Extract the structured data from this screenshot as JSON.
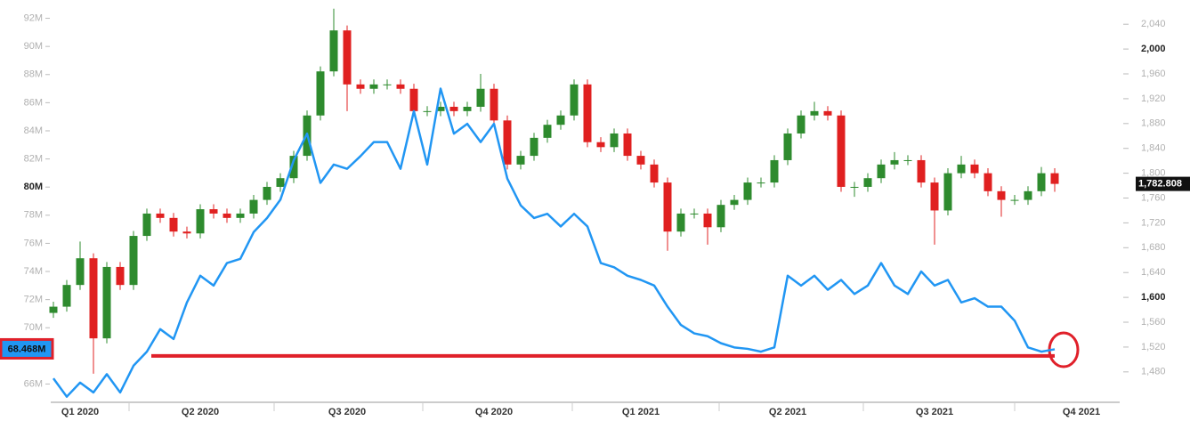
{
  "chart_data": {
    "type": "candlestick",
    "categories": [
      null,
      null,
      "Q1 2020",
      null,
      null,
      null,
      null,
      null,
      null,
      null,
      null,
      "Q2 2020",
      null,
      null,
      null,
      null,
      null,
      null,
      null,
      null,
      null,
      null,
      "Q3 2020",
      null,
      null,
      null,
      null,
      null,
      null,
      null,
      null,
      null,
      null,
      "Q4 2020",
      null,
      null,
      null,
      null,
      null,
      null,
      null,
      null,
      null,
      null,
      "Q1 2021",
      null,
      null,
      null,
      null,
      null,
      null,
      null,
      null,
      null,
      null,
      "Q2 2021",
      null,
      null,
      null,
      null,
      null,
      null,
      null,
      null,
      null,
      null,
      "Q3 2021",
      null,
      null,
      null,
      null,
      null,
      null,
      null,
      null,
      null,
      null,
      "Q4 2021"
    ],
    "ohlc": {
      "axis": "y2",
      "up_color": "#2e8b2e",
      "down_color": "#e02020",
      "open": [
        1575,
        1585,
        1620,
        1663,
        1534,
        1649,
        1620,
        1699,
        1735,
        1728,
        1706,
        1703,
        1742,
        1735,
        1728,
        1735,
        1757,
        1778,
        1792,
        1828,
        1893,
        1964,
        2030,
        1943,
        1936,
        1943,
        1943,
        1936,
        1900,
        1900,
        1907,
        1900,
        1907,
        1936,
        1885,
        1814,
        1828,
        1857,
        1878,
        1893,
        1943,
        1850,
        1842,
        1864,
        1828,
        1814,
        1785,
        1706,
        1735,
        1735,
        1713,
        1749,
        1757,
        1785,
        1785,
        1821,
        1864,
        1893,
        1900,
        1893,
        1778,
        1778,
        1792,
        1814,
        1821,
        1821,
        1785,
        1740,
        1800,
        1814,
        1800,
        1771,
        1757,
        1757,
        1771,
        1800,
        null,
        null
      ],
      "high": [
        1593,
        1628,
        1690,
        1671,
        1657,
        1657,
        1707,
        1743,
        1743,
        1736,
        1714,
        1750,
        1750,
        1743,
        1743,
        1765,
        1786,
        1800,
        1836,
        1901,
        1972,
        2065,
        2038,
        1951,
        1951,
        1951,
        1951,
        1944,
        1908,
        1915,
        1915,
        1915,
        1960,
        1944,
        1893,
        1836,
        1865,
        1886,
        1901,
        1951,
        1951,
        1858,
        1872,
        1872,
        1836,
        1822,
        1793,
        1743,
        1743,
        1743,
        1757,
        1765,
        1793,
        1793,
        1829,
        1872,
        1901,
        1915,
        1908,
        1901,
        1786,
        1800,
        1822,
        1834,
        1829,
        1829,
        1793,
        1808,
        1828,
        1822,
        1808,
        1779,
        1765,
        1779,
        1810,
        1808,
        null,
        null
      ],
      "low": [
        1567,
        1577,
        1612,
        1477,
        1526,
        1612,
        1612,
        1691,
        1720,
        1698,
        1695,
        1695,
        1727,
        1720,
        1720,
        1727,
        1749,
        1770,
        1784,
        1820,
        1885,
        1956,
        1900,
        1928,
        1928,
        1935,
        1928,
        1892,
        1892,
        1892,
        1892,
        1892,
        1899,
        1877,
        1806,
        1806,
        1820,
        1849,
        1870,
        1885,
        1842,
        1834,
        1834,
        1820,
        1806,
        1777,
        1675,
        1698,
        1727,
        1685,
        1705,
        1741,
        1749,
        1777,
        1777,
        1813,
        1856,
        1885,
        1885,
        1770,
        1762,
        1770,
        1784,
        1806,
        1813,
        1777,
        1685,
        1732,
        1792,
        1792,
        1763,
        1730,
        1749,
        1749,
        1763,
        1770,
        null,
        null
      ],
      "close": [
        1585,
        1620,
        1663,
        1534,
        1649,
        1620,
        1699,
        1735,
        1728,
        1706,
        1703,
        1742,
        1735,
        1728,
        1735,
        1757,
        1778,
        1792,
        1828,
        1893,
        1964,
        2030,
        1943,
        1936,
        1943,
        1943,
        1936,
        1900,
        1900,
        1907,
        1900,
        1907,
        1936,
        1885,
        1814,
        1828,
        1857,
        1878,
        1893,
        1943,
        1850,
        1842,
        1864,
        1828,
        1814,
        1785,
        1706,
        1735,
        1735,
        1713,
        1749,
        1757,
        1785,
        1785,
        1821,
        1864,
        1893,
        1900,
        1893,
        1778,
        1778,
        1792,
        1814,
        1821,
        1821,
        1785,
        1740,
        1800,
        1814,
        1800,
        1771,
        1757,
        1757,
        1771,
        1800,
        1782.808,
        null,
        null
      ],
      "last_label": "1,782.808"
    },
    "line": {
      "color": "#2196f3",
      "values": [
        66.4,
        65.1,
        66.1,
        65.4,
        66.7,
        65.4,
        67.3,
        68.3,
        69.9,
        69.2,
        71.8,
        73.7,
        73.0,
        74.6,
        74.9,
        76.8,
        77.8,
        79.1,
        81.9,
        83.8,
        80.3,
        81.6,
        81.3,
        82.2,
        83.2,
        83.2,
        81.3,
        85.4,
        81.6,
        87.0,
        83.8,
        84.5,
        83.2,
        84.5,
        80.6,
        78.7,
        77.8,
        78.1,
        77.2,
        78.1,
        77.2,
        74.6,
        74.3,
        73.7,
        73.4,
        73.0,
        71.5,
        70.2,
        69.6,
        69.4,
        68.9,
        68.6,
        68.5,
        68.3,
        68.6,
        73.7,
        73.0,
        73.7,
        72.7,
        73.4,
        72.4,
        73.0,
        74.6,
        73.0,
        72.4,
        74.0,
        73.0,
        73.4,
        71.8,
        72.1,
        71.5,
        71.5,
        70.5,
        68.6,
        68.3,
        68.468,
        null,
        null
      ],
      "last_label": "68.468M"
    },
    "annotation": {
      "value": 68,
      "color": "#e0202a"
    },
    "ylim": [
      64.7,
      93.3
    ],
    "yticks": [
      {
        "value": 66,
        "label": "66M"
      },
      {
        "value": 68,
        "label": "68M"
      },
      {
        "value": 70,
        "label": "70M"
      },
      {
        "value": 72,
        "label": "72M"
      },
      {
        "value": 74,
        "label": "74M"
      },
      {
        "value": 76,
        "label": "76M"
      },
      {
        "value": 78,
        "label": "78M"
      },
      {
        "value": 80,
        "label": "80M",
        "bold": true
      },
      {
        "value": 82,
        "label": "82M"
      },
      {
        "value": 84,
        "label": "84M"
      },
      {
        "value": 86,
        "label": "86M"
      },
      {
        "value": 88,
        "label": "88M"
      },
      {
        "value": 90,
        "label": "90M"
      },
      {
        "value": 92,
        "label": "92M"
      }
    ],
    "y2lim": [
      1431,
      2079
    ],
    "y2ticks": [
      {
        "value": 1480,
        "label": "1,480"
      },
      {
        "value": 1520,
        "label": "1,520"
      },
      {
        "value": 1560,
        "label": "1,560"
      },
      {
        "value": 1600,
        "label": "1,600",
        "bold": true
      },
      {
        "value": 1640,
        "label": "1,640"
      },
      {
        "value": 1680,
        "label": "1,680"
      },
      {
        "value": 1720,
        "label": "1,720"
      },
      {
        "value": 1760,
        "label": "1,760"
      },
      {
        "value": 1800,
        "label": "1,800"
      },
      {
        "value": 1840,
        "label": "1,840"
      },
      {
        "value": 1880,
        "label": "1,880"
      },
      {
        "value": 1920,
        "label": "1,920"
      },
      {
        "value": 1960,
        "label": "1,960"
      },
      {
        "value": 2000,
        "label": "2,000",
        "bold": true
      },
      {
        "value": 2040,
        "label": "2,040"
      }
    ]
  }
}
